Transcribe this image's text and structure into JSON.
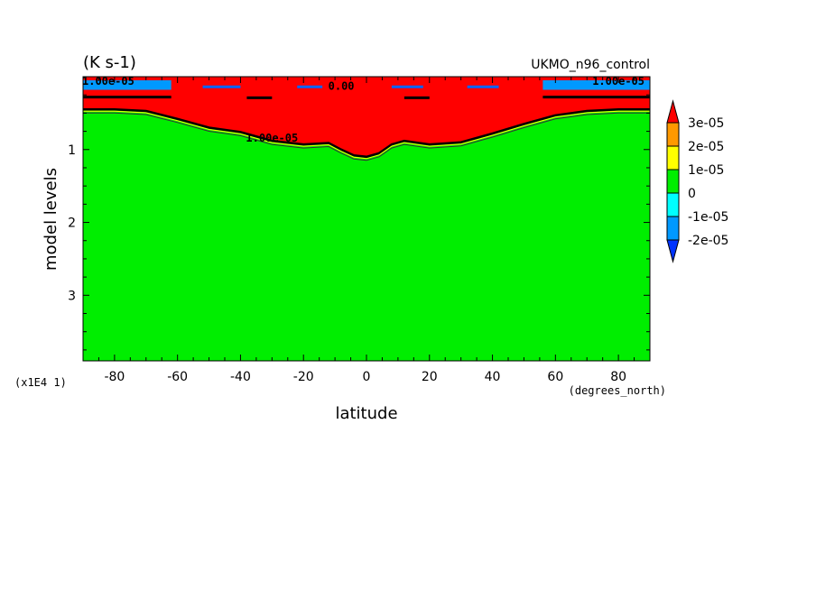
{
  "chart_data": {
    "type": "heatmap",
    "title_left": "(K s-1)",
    "title_right": "UKMO_n96_control",
    "xlabel": "latitude",
    "x_units": "(degrees_north)",
    "ylabel": "model levels",
    "y_multiplier": "(x1E4 1)",
    "xlim": [
      -90,
      90
    ],
    "ylim": [
      3.9,
      0
    ],
    "x_ticks": [
      -80,
      -60,
      -40,
      -20,
      0,
      20,
      40,
      60,
      80
    ],
    "x_tick_labels": [
      "-80",
      "-60",
      "-40",
      "-20",
      "0",
      "20",
      "40",
      "60",
      "80"
    ],
    "y_ticks": [
      1,
      2,
      3
    ],
    "y_tick_labels": [
      "1",
      "2",
      "3"
    ],
    "colorbar": {
      "levels": [
        "3e-05",
        "2e-05",
        "1e-05",
        "0",
        "-1e-05",
        "-2e-05"
      ],
      "level_values": [
        3e-05,
        2e-05,
        1e-05,
        0,
        -1e-05,
        -2e-05
      ],
      "colors": {
        "above_3e-05": "#ff0000",
        "2e-05_to_3e-05": "#ff9900",
        "1e-05_to_2e-05": "#ffff00",
        "0_to_1e-05": "#00ee00",
        "-1e-05_to_0": "#00ffff",
        "-2e-05_to_-1e-05": "#0099ff",
        "below_-2e-05": "#0033ff"
      }
    },
    "contour_labels": [
      {
        "text": "1.00e-05",
        "lat": -30,
        "level": 0.83
      },
      {
        "text": "0.00",
        "lat": -8,
        "level": 0.12
      },
      {
        "text": "1.00e-05",
        "lat": -82,
        "level": 0.05
      },
      {
        "text": "1.00e-05",
        "lat": 80,
        "level": 0.05
      }
    ],
    "red_region_boundary": {
      "lat": [
        -90,
        -80,
        -70,
        -60,
        -50,
        -40,
        -30,
        -20,
        -12,
        -8,
        -4,
        0,
        4,
        8,
        12,
        20,
        30,
        40,
        50,
        60,
        70,
        80,
        90
      ],
      "level": [
        0.45,
        0.45,
        0.47,
        0.58,
        0.7,
        0.76,
        0.88,
        0.93,
        0.91,
        1.0,
        1.08,
        1.1,
        1.05,
        0.93,
        0.88,
        0.93,
        0.9,
        0.78,
        0.65,
        0.53,
        0.47,
        0.45,
        0.45
      ]
    },
    "top_blue_band": {
      "level_range": [
        0.0,
        0.18
      ],
      "lat_ranges": [
        [
          -90,
          -62
        ],
        [
          56,
          90
        ]
      ]
    },
    "background_fill": "0_to_1e-05",
    "grid": false
  }
}
